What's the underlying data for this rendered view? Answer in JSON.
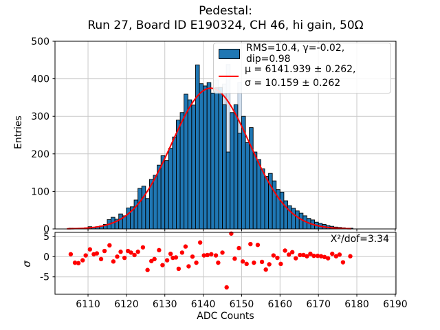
{
  "title": {
    "line1": "Pedestal:",
    "line2": "Run 27, Board ID E190324, CH 46, hi gain, 50Ω"
  },
  "legend": {
    "hist_label": "RMS=10.4, γ=-0.02, dip=0.98",
    "fit_label_line1": "μ = 6141.939 ± 0.262,",
    "fit_label_line2": "σ = 10.159 ± 0.262"
  },
  "main_axes": {
    "ylabel": "Entries",
    "yticks": [
      0,
      100,
      200,
      300,
      400,
      500
    ],
    "ylim": [
      0,
      500
    ],
    "grid": true
  },
  "residual_axes": {
    "ylabel": "σ",
    "yticks": [
      5,
      0,
      -5
    ],
    "ylim": [
      -9.3,
      6.0
    ],
    "annotation": "X²/dof=3.34",
    "grid": true
  },
  "x_axis": {
    "label": "ADC Counts",
    "ticks": [
      6110,
      6120,
      6130,
      6140,
      6150,
      6160,
      6170,
      6180,
      6190
    ],
    "xlim": [
      6101.4,
      6190.2
    ]
  },
  "colors": {
    "bar_fill": "#1f77b4",
    "bar_edge": "#000000",
    "overlay_fill": "#d3e0ee",
    "overlay_edge": "#9fb0c1",
    "fit_line": "#ff0000",
    "residual_dot": "#ff0000",
    "grid": "#c9c9c9",
    "spine": "#000000"
  },
  "chart_data": [
    {
      "type": "bar",
      "name": "pedestal-histogram",
      "legend_entry": "RMS=10.4, γ=-0.02, dip=0.98",
      "bin_start": 6105,
      "bin_width": 1,
      "values": [
        2,
        2,
        1,
        2,
        3,
        6,
        4,
        6,
        8,
        12,
        25,
        31,
        26,
        40,
        35,
        56,
        59,
        77,
        108,
        114,
        81,
        132,
        143,
        170,
        195,
        182,
        215,
        245,
        290,
        310,
        359,
        344,
        330,
        437,
        387,
        381,
        390,
        362,
        376,
        377,
        331,
        205,
        310,
        331,
        255,
        300,
        230,
        270,
        205,
        185,
        160,
        140,
        148,
        128,
        105,
        98,
        75,
        62,
        55,
        48,
        42,
        35,
        28,
        24,
        18,
        15,
        12,
        9,
        7,
        5,
        4,
        3,
        2,
        2
      ]
    },
    {
      "type": "bar",
      "name": "uncut-histogram-overlay",
      "bin_width": 1,
      "points": [
        [
          6143,
          397
        ],
        [
          6145,
          386
        ],
        [
          6146,
          438
        ],
        [
          6149,
          390
        ]
      ]
    },
    {
      "type": "line",
      "name": "gaussian-fit",
      "legend_entry": "μ = 6141.939 ± 0.262, σ = 10.159 ± 0.262",
      "fit": {
        "amplitude": 375,
        "mu": 6141.939,
        "sigma": 10.159,
        "range": [
          6104.5,
          6178.5
        ]
      }
    },
    {
      "type": "scatter",
      "name": "fit-residuals",
      "points": [
        [
          6105.5,
          0.6
        ],
        [
          6106.6,
          -1.5
        ],
        [
          6107.5,
          -1.6
        ],
        [
          6108.6,
          -0.9
        ],
        [
          6109.4,
          0.3
        ],
        [
          6110.5,
          1.8
        ],
        [
          6111.5,
          0.6
        ],
        [
          6112.3,
          0.8
        ],
        [
          6113.4,
          -0.6
        ],
        [
          6114.3,
          1.4
        ],
        [
          6115.6,
          2.8
        ],
        [
          6116.6,
          -1.2
        ],
        [
          6117.6,
          0.0
        ],
        [
          6118.5,
          1.2
        ],
        [
          6119.5,
          -0.3
        ],
        [
          6120.4,
          1.4
        ],
        [
          6121.2,
          1.0
        ],
        [
          6122.1,
          0.4
        ],
        [
          6123.0,
          1.2
        ],
        [
          6124.3,
          2.3
        ],
        [
          6125.5,
          -3.3
        ],
        [
          6126.5,
          -1.1
        ],
        [
          6127.3,
          -0.6
        ],
        [
          6128.5,
          1.6
        ],
        [
          6129.4,
          -2.1
        ],
        [
          6130.6,
          -0.9
        ],
        [
          6131.5,
          0.7
        ],
        [
          6132.1,
          -0.3
        ],
        [
          6132.9,
          -0.2
        ],
        [
          6133.6,
          -3.0
        ],
        [
          6134.5,
          1.0
        ],
        [
          6135.4,
          2.5
        ],
        [
          6136.2,
          -2.4
        ],
        [
          6137.2,
          0.0
        ],
        [
          6138.2,
          -1.5
        ],
        [
          6139.2,
          3.5
        ],
        [
          6140.2,
          0.3
        ],
        [
          6141.1,
          0.4
        ],
        [
          6142.1,
          0.6
        ],
        [
          6143.3,
          0.3
        ],
        [
          6143.9,
          -1.5
        ],
        [
          6145.0,
          1.0
        ],
        [
          6146.1,
          -7.6
        ],
        [
          6147.3,
          5.7
        ],
        [
          6148.2,
          -0.5
        ],
        [
          6149.3,
          2.1
        ],
        [
          6150.3,
          -1.2
        ],
        [
          6151.3,
          -1.8
        ],
        [
          6152.3,
          3.1
        ],
        [
          6153.2,
          -1.5
        ],
        [
          6154.2,
          2.9
        ],
        [
          6155.3,
          -1.3
        ],
        [
          6156.3,
          -3.2
        ],
        [
          6157.2,
          -1.9
        ],
        [
          6158.3,
          0.3
        ],
        [
          6159.3,
          -0.3
        ],
        [
          6160.2,
          -1.8
        ],
        [
          6161.3,
          1.5
        ],
        [
          6162.3,
          0.5
        ],
        [
          6163.2,
          1.1
        ],
        [
          6164.1,
          -0.4
        ],
        [
          6165.2,
          0.4
        ],
        [
          6166.1,
          0.4
        ],
        [
          6167.0,
          0.1
        ],
        [
          6167.9,
          0.7
        ],
        [
          6168.8,
          0.2
        ],
        [
          6169.8,
          0.2
        ],
        [
          6170.7,
          0.1
        ],
        [
          6171.6,
          -0.1
        ],
        [
          6172.5,
          -0.4
        ],
        [
          6173.6,
          0.7
        ],
        [
          6174.6,
          0.1
        ],
        [
          6175.5,
          0.5
        ],
        [
          6176.4,
          -1.4
        ],
        [
          6178.3,
          0.1
        ]
      ]
    }
  ]
}
